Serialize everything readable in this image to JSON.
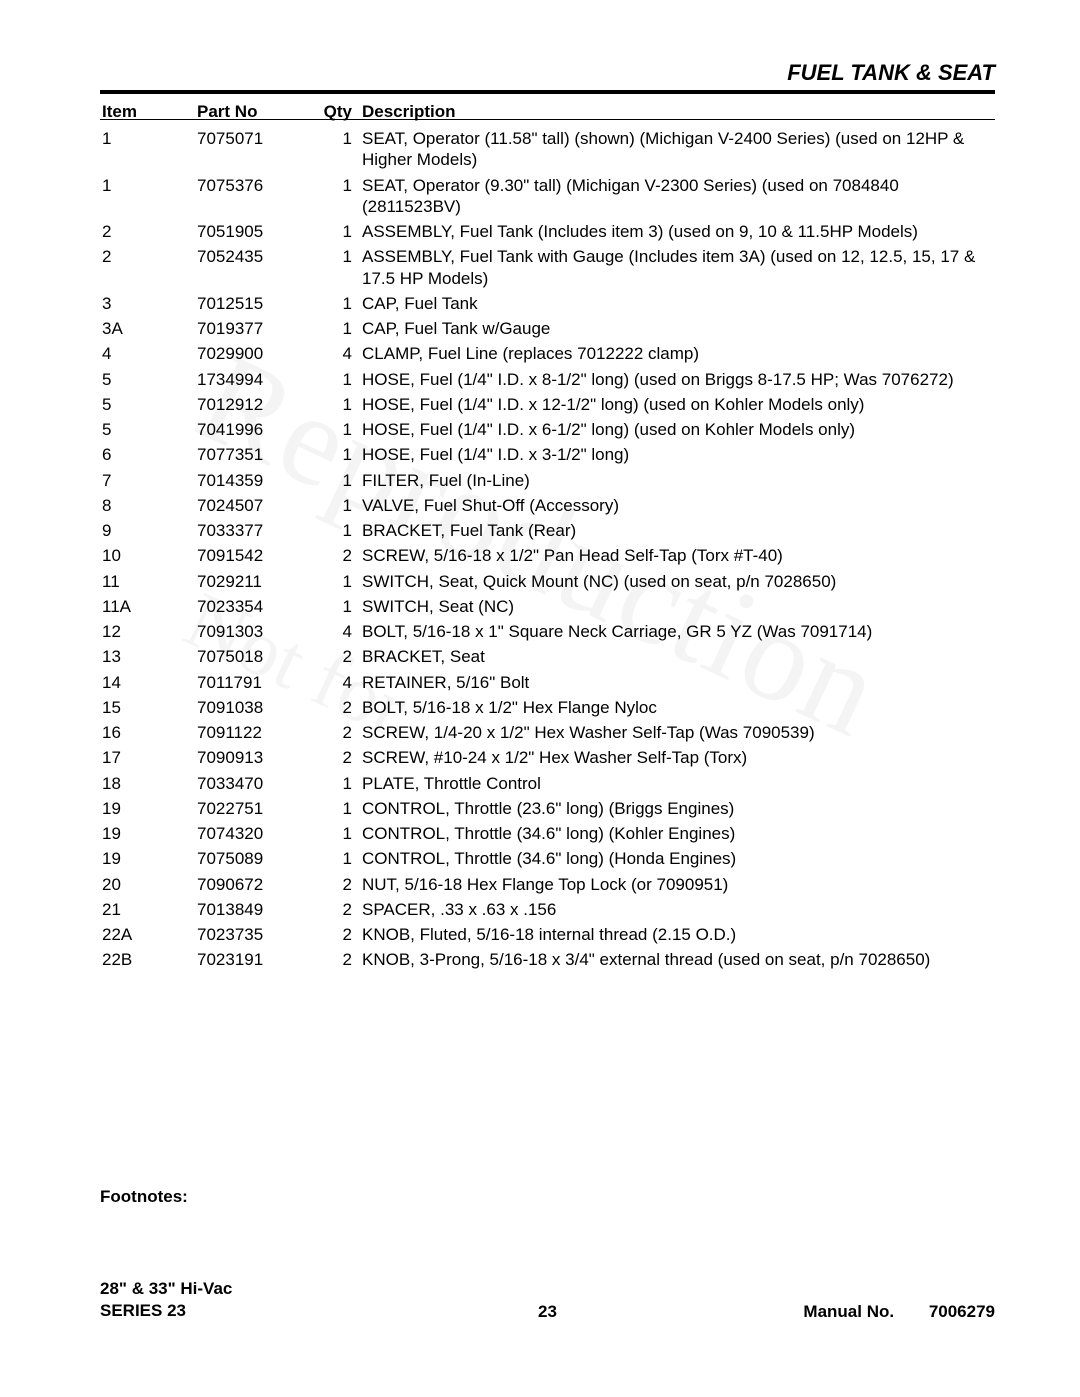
{
  "section_title": "FUEL TANK & SEAT",
  "columns": {
    "item": "Item",
    "part": "Part No",
    "qty": "Qty",
    "desc": "Description"
  },
  "rows": [
    {
      "item": "1",
      "part": "7075071",
      "qty": "1",
      "desc": "SEAT, Operator (11.58\" tall) (shown) (Michigan V-2400 Series) (used on 12HP & Higher Models)"
    },
    {
      "item": "1",
      "part": "7075376",
      "qty": "1",
      "desc": "SEAT, Operator (9.30\" tall) (Michigan V-2300 Series) (used on 7084840 (2811523BV)"
    },
    {
      "item": "2",
      "part": "7051905",
      "qty": "1",
      "desc": "ASSEMBLY, Fuel Tank (Includes item 3) (used on 9, 10 & 11.5HP Models)"
    },
    {
      "item": "2",
      "part": "7052435",
      "qty": "1",
      "desc": "ASSEMBLY, Fuel Tank with Gauge (Includes item 3A) (used on 12, 12.5, 15, 17 & 17.5 HP Models)"
    },
    {
      "item": "3",
      "part": "7012515",
      "qty": "1",
      "desc": "CAP, Fuel Tank"
    },
    {
      "item": "3A",
      "part": "7019377",
      "qty": "1",
      "desc": "CAP, Fuel Tank w/Gauge"
    },
    {
      "item": "4",
      "part": "7029900",
      "qty": "4",
      "desc": "CLAMP, Fuel Line (replaces 7012222 clamp)"
    },
    {
      "item": "5",
      "part": "1734994",
      "qty": "1",
      "desc": "HOSE, Fuel (1/4\" I.D. x 8-1/2\" long) (used on Briggs 8-17.5 HP; Was 7076272)"
    },
    {
      "item": "5",
      "part": "7012912",
      "qty": "1",
      "desc": "HOSE, Fuel (1/4\" I.D. x 12-1/2\" long) (used on Kohler Models only)"
    },
    {
      "item": "5",
      "part": "7041996",
      "qty": "1",
      "desc": "HOSE, Fuel (1/4\" I.D. x 6-1/2\" long) (used on Kohler Models only)"
    },
    {
      "item": "6",
      "part": "7077351",
      "qty": "1",
      "desc": "HOSE, Fuel (1/4\" I.D. x 3-1/2\" long)"
    },
    {
      "item": "7",
      "part": "7014359",
      "qty": "1",
      "desc": "FILTER, Fuel (In-Line)"
    },
    {
      "item": "8",
      "part": "7024507",
      "qty": "1",
      "desc": "VALVE, Fuel Shut-Off (Accessory)"
    },
    {
      "item": "9",
      "part": "7033377",
      "qty": "1",
      "desc": "BRACKET, Fuel Tank (Rear)"
    },
    {
      "item": "10",
      "part": "7091542",
      "qty": "2",
      "desc": "SCREW, 5/16-18 x 1/2\" Pan Head Self-Tap (Torx #T-40)"
    },
    {
      "item": "11",
      "part": "7029211",
      "qty": "1",
      "desc": "SWITCH, Seat, Quick Mount (NC) (used on seat, p/n 7028650)"
    },
    {
      "item": "11A",
      "part": "7023354",
      "qty": "1",
      "desc": "SWITCH, Seat (NC)"
    },
    {
      "item": "12",
      "part": "7091303",
      "qty": "4",
      "desc": "BOLT, 5/16-18 x 1\" Square Neck Carriage, GR 5 YZ (Was 7091714)"
    },
    {
      "item": "13",
      "part": "7075018",
      "qty": "2",
      "desc": "BRACKET, Seat"
    },
    {
      "item": "14",
      "part": "7011791",
      "qty": "4",
      "desc": "RETAINER, 5/16\" Bolt"
    },
    {
      "item": "15",
      "part": "7091038",
      "qty": "2",
      "desc": "BOLT, 5/16-18 x 1/2\" Hex Flange Nyloc"
    },
    {
      "item": "16",
      "part": "7091122",
      "qty": "2",
      "desc": "SCREW, 1/4-20 x 1/2\" Hex Washer Self-Tap (Was 7090539)"
    },
    {
      "item": "17",
      "part": "7090913",
      "qty": "2",
      "desc": "SCREW, #10-24 x 1/2\" Hex Washer Self-Tap (Torx)"
    },
    {
      "item": "18",
      "part": "7033470",
      "qty": "1",
      "desc": "PLATE, Throttle Control"
    },
    {
      "item": "19",
      "part": "7022751",
      "qty": "1",
      "desc": "CONTROL, Throttle (23.6\" long) (Briggs Engines)"
    },
    {
      "item": "19",
      "part": "7074320",
      "qty": "1",
      "desc": "CONTROL, Throttle (34.6\" long) (Kohler Engines)"
    },
    {
      "item": "19",
      "part": "7075089",
      "qty": "1",
      "desc": "CONTROL, Throttle (34.6\" long) (Honda Engines)"
    },
    {
      "item": "20",
      "part": "7090672",
      "qty": "2",
      "desc": "NUT, 5/16-18 Hex Flange Top Lock (or 7090951)"
    },
    {
      "item": "21",
      "part": "7013849",
      "qty": "2",
      "desc": "SPACER, .33 x .63 x .156"
    },
    {
      "item": "22A",
      "part": "7023735",
      "qty": "2",
      "desc": "KNOB, Fluted, 5/16-18 internal thread (2.15 O.D.)"
    },
    {
      "item": "22B",
      "part": "7023191",
      "qty": "2",
      "desc": "KNOB, 3-Prong, 5/16-18 x 3/4\" external thread (used on seat, p/n 7028650)"
    }
  ],
  "footnotes_label": "Footnotes:",
  "footer": {
    "left_line1": "28\" & 33\" Hi-Vac",
    "left_line2": "SERIES 23",
    "page_number": "23",
    "manual_label": "Manual No.",
    "manual_number": "7006279"
  },
  "watermark1": "Reproduction",
  "watermark2": "Not for"
}
